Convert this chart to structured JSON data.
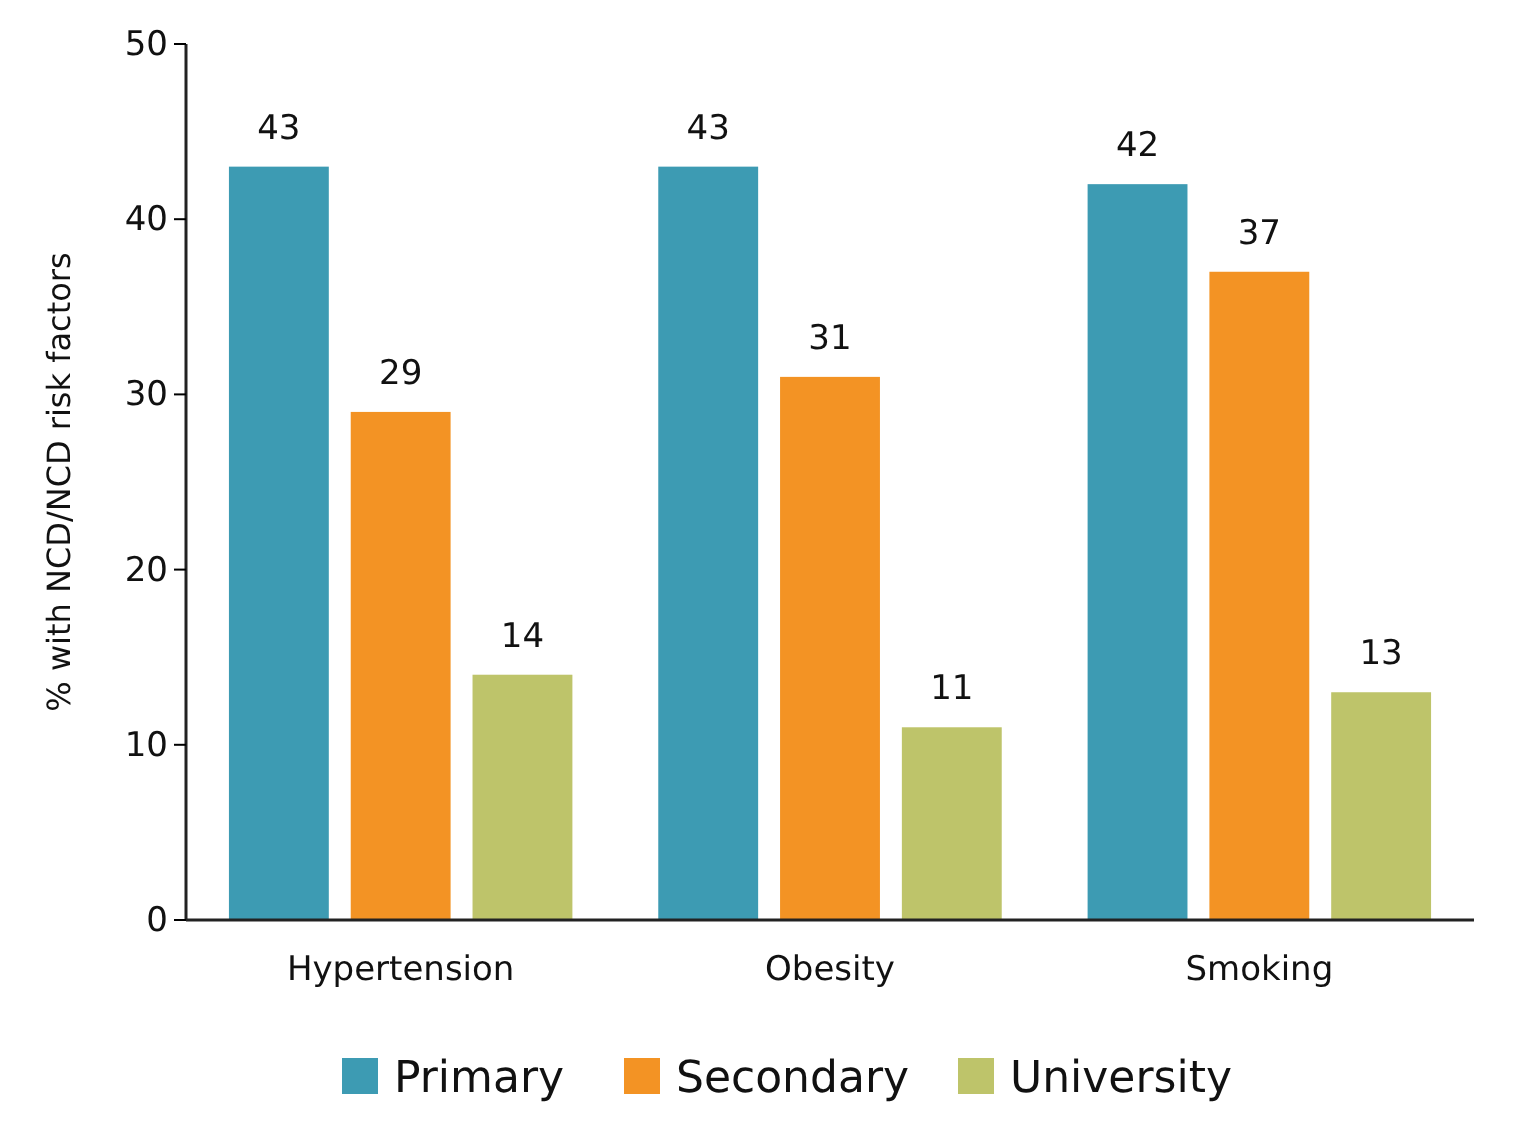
{
  "chart_data": {
    "type": "bar",
    "ylabel": "% with NCD/NCD risk factors",
    "categories": [
      "Hypertension",
      "Obesity",
      "Smoking"
    ],
    "series": [
      {
        "name": "Primary",
        "color": "#3d9bb3",
        "values": [
          43,
          43,
          42
        ]
      },
      {
        "name": "Secondary",
        "color": "#f39324",
        "values": [
          29,
          31,
          37
        ]
      },
      {
        "name": "University",
        "color": "#bec46a",
        "values": [
          14,
          11,
          13
        ]
      }
    ],
    "ylim": [
      0,
      50
    ],
    "yticks": [
      0,
      10,
      20,
      30,
      40,
      50
    ],
    "data_labels": true,
    "legend": "bottom",
    "grid": false
  }
}
